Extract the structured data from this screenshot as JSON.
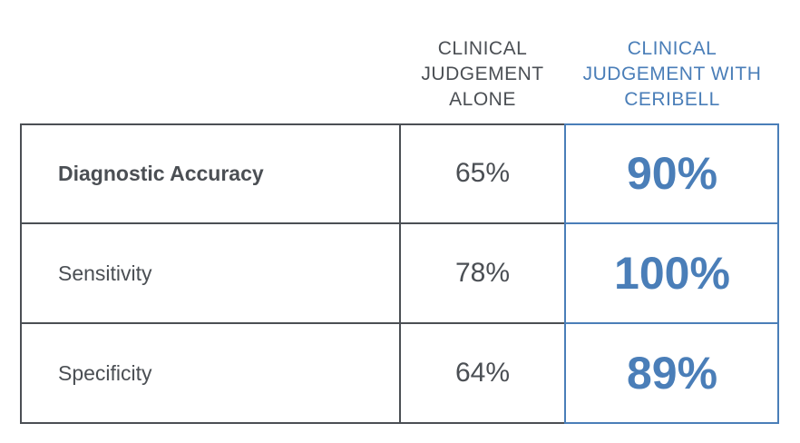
{
  "chart_data": {
    "type": "table",
    "columns": [
      "",
      "CLINICAL JUDGEMENT ALONE",
      "CLINICAL JUDGEMENT WITH CERIBELL"
    ],
    "column_header_lines": {
      "baseline": [
        "CLINICAL",
        "JUDGEMENT",
        "ALONE"
      ],
      "ceribell": [
        "CLINICAL",
        "JUDGEMENT WITH",
        "CERIBELL"
      ]
    },
    "rows": [
      {
        "label": "Diagnostic Accuracy",
        "baseline": "65%",
        "ceribell": "90%",
        "baseline_value": 65,
        "ceribell_value": 90
      },
      {
        "label": "Sensitivity",
        "baseline": "78%",
        "ceribell": "100%",
        "baseline_value": 78,
        "ceribell_value": 100
      },
      {
        "label": "Specificity",
        "baseline": "64%",
        "ceribell": "89%",
        "baseline_value": 64,
        "ceribell_value": 89
      }
    ],
    "colors": {
      "text": "#4b4f54",
      "accent": "#4a7eb8",
      "border": "#4b4f54"
    }
  }
}
